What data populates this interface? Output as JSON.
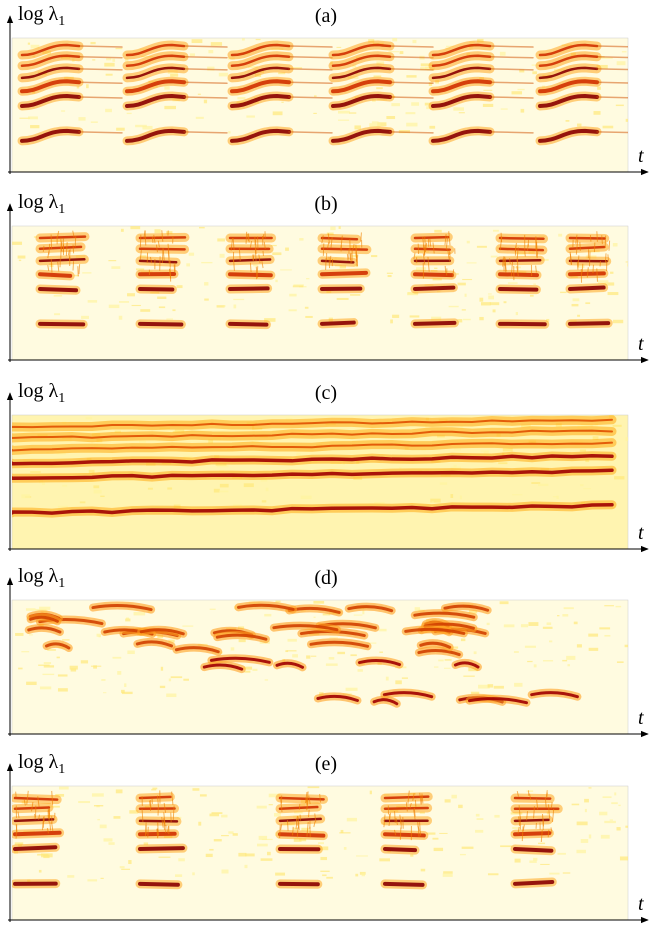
{
  "panels": [
    {
      "label": "(a)",
      "y_label": "log λ",
      "y_label_sub": "1",
      "x_label": "t"
    },
    {
      "label": "(b)",
      "y_label": "log λ",
      "y_label_sub": "1",
      "x_label": "t"
    },
    {
      "label": "(c)",
      "y_label": "log λ",
      "y_label_sub": "1",
      "x_label": "t"
    },
    {
      "label": "(d)",
      "y_label": "log λ",
      "y_label_sub": "1",
      "x_label": "t"
    },
    {
      "label": "(e)",
      "y_label": "log λ",
      "y_label_sub": "1",
      "x_label": "t"
    }
  ]
}
